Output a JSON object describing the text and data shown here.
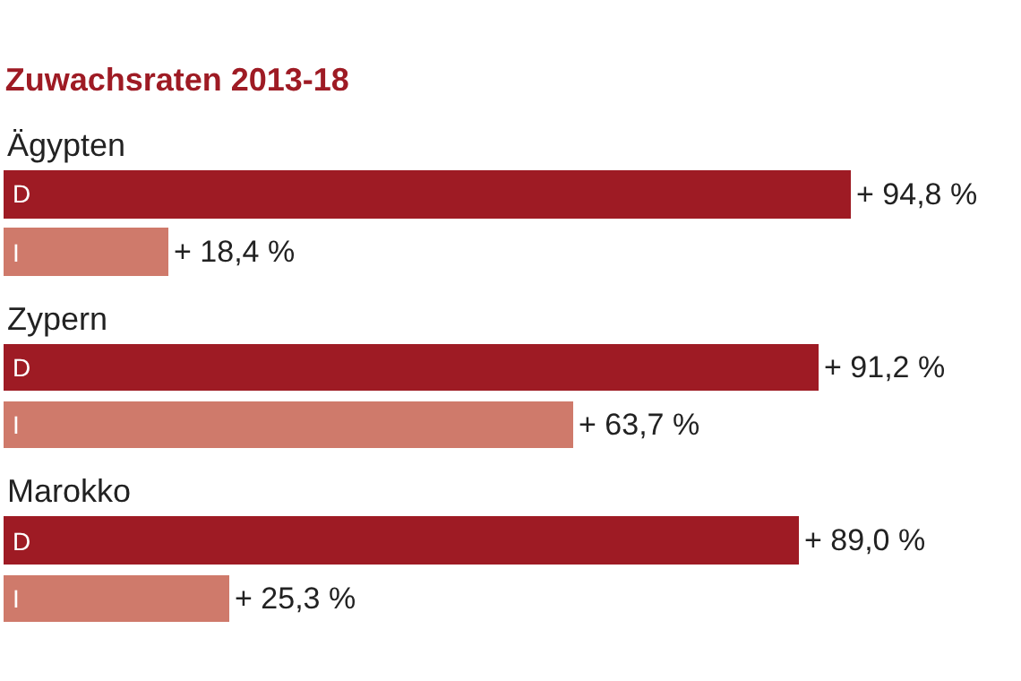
{
  "chart_data": {
    "type": "bar",
    "orientation": "horizontal",
    "title": "Zuwachsraten 2013-18",
    "categories": [
      "Ägypten",
      "Zypern",
      "Marokko"
    ],
    "series": [
      {
        "name": "D",
        "color": "#9e1b24",
        "values": [
          94.8,
          91.2,
          89.0
        ],
        "value_labels": [
          "+ 94,8 %",
          "+ 91,2 %",
          "+ 89,0 %"
        ]
      },
      {
        "name": "I",
        "color": "#cf7a6b",
        "values": [
          18.4,
          63.7,
          25.3
        ],
        "value_labels": [
          "+ 18,4 %",
          "+ 63,7 %",
          "+ 25,3 %"
        ]
      }
    ],
    "legend": false
  }
}
